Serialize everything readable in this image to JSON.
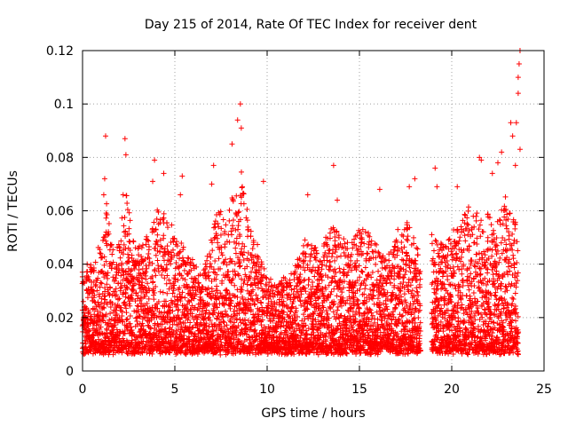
{
  "chart_data": {
    "type": "scatter",
    "title": "Day 215 of 2014, Rate Of TEC Index for receiver dent",
    "xlabel": "GPS time / hours",
    "ylabel": "ROTI / TECUs",
    "xlim": [
      0,
      25
    ],
    "ylim": [
      0,
      0.12
    ],
    "xticks": [
      "0",
      "5",
      "10",
      "15",
      "20",
      "25"
    ],
    "yticks": [
      "0",
      "0.02",
      "0.04",
      "0.06",
      "0.08",
      "0.1",
      "0.12"
    ],
    "grid": true,
    "marker": "plus",
    "color": "#ff0000",
    "data_gap_hours": [
      18.3,
      18.9
    ],
    "series": [
      {
        "envelope": {
          "x": [
            0,
            0.5,
            1.0,
            1.3,
            1.7,
            2.0,
            2.4,
            3.0,
            3.5,
            4.0,
            4.5,
            5.0,
            5.5,
            6.0,
            6.5,
            7.0,
            7.3,
            7.8,
            8.2,
            8.6,
            9.0,
            9.5,
            10.0,
            10.5,
            11.0,
            11.5,
            12.0,
            12.5,
            13.0,
            13.5,
            14.0,
            14.5,
            15.0,
            15.5,
            16.0,
            16.5,
            17.0,
            17.5,
            18.2,
            19.0,
            19.5,
            20.0,
            20.5,
            21.0,
            21.5,
            22.0,
            22.5,
            23.0,
            23.3,
            23.6
          ],
          "y": [
            0.035,
            0.04,
            0.045,
            0.06,
            0.042,
            0.05,
            0.065,
            0.045,
            0.05,
            0.06,
            0.055,
            0.05,
            0.045,
            0.04,
            0.035,
            0.05,
            0.06,
            0.055,
            0.065,
            0.075,
            0.055,
            0.045,
            0.035,
            0.03,
            0.035,
            0.04,
            0.05,
            0.045,
            0.045,
            0.055,
            0.05,
            0.045,
            0.055,
            0.05,
            0.045,
            0.04,
            0.05,
            0.055,
            0.045,
            0.05,
            0.045,
            0.05,
            0.055,
            0.06,
            0.055,
            0.06,
            0.055,
            0.065,
            0.06,
            0.05
          ]
        },
        "floor": 0.006,
        "spikes": [
          {
            "x": 1.25,
            "y": 0.088
          },
          {
            "x": 1.2,
            "y": 0.072
          },
          {
            "x": 1.15,
            "y": 0.066
          },
          {
            "x": 2.3,
            "y": 0.087
          },
          {
            "x": 2.35,
            "y": 0.081
          },
          {
            "x": 2.2,
            "y": 0.066
          },
          {
            "x": 3.9,
            "y": 0.079
          },
          {
            "x": 3.8,
            "y": 0.071
          },
          {
            "x": 4.4,
            "y": 0.074
          },
          {
            "x": 5.4,
            "y": 0.073
          },
          {
            "x": 5.3,
            "y": 0.066
          },
          {
            "x": 7.1,
            "y": 0.077
          },
          {
            "x": 7.0,
            "y": 0.07
          },
          {
            "x": 8.1,
            "y": 0.085
          },
          {
            "x": 8.4,
            "y": 0.094
          },
          {
            "x": 8.55,
            "y": 0.1
          },
          {
            "x": 8.6,
            "y": 0.091
          },
          {
            "x": 9.8,
            "y": 0.071
          },
          {
            "x": 12.2,
            "y": 0.066
          },
          {
            "x": 13.6,
            "y": 0.077
          },
          {
            "x": 13.8,
            "y": 0.064
          },
          {
            "x": 16.1,
            "y": 0.068
          },
          {
            "x": 17.7,
            "y": 0.069
          },
          {
            "x": 18.0,
            "y": 0.072
          },
          {
            "x": 19.1,
            "y": 0.076
          },
          {
            "x": 19.2,
            "y": 0.069
          },
          {
            "x": 20.3,
            "y": 0.069
          },
          {
            "x": 21.5,
            "y": 0.08
          },
          {
            "x": 21.6,
            "y": 0.079
          },
          {
            "x": 22.2,
            "y": 0.074
          },
          {
            "x": 22.5,
            "y": 0.078
          },
          {
            "x": 22.7,
            "y": 0.082
          },
          {
            "x": 23.2,
            "y": 0.093
          },
          {
            "x": 23.5,
            "y": 0.093
          },
          {
            "x": 23.3,
            "y": 0.088
          },
          {
            "x": 23.6,
            "y": 0.104
          },
          {
            "x": 23.65,
            "y": 0.115
          },
          {
            "x": 23.7,
            "y": 0.12
          },
          {
            "x": 23.6,
            "y": 0.11
          },
          {
            "x": 23.45,
            "y": 0.077
          },
          {
            "x": 23.7,
            "y": 0.083
          },
          {
            "x": 0.25,
            "y": 0.04
          }
        ]
      }
    ]
  }
}
